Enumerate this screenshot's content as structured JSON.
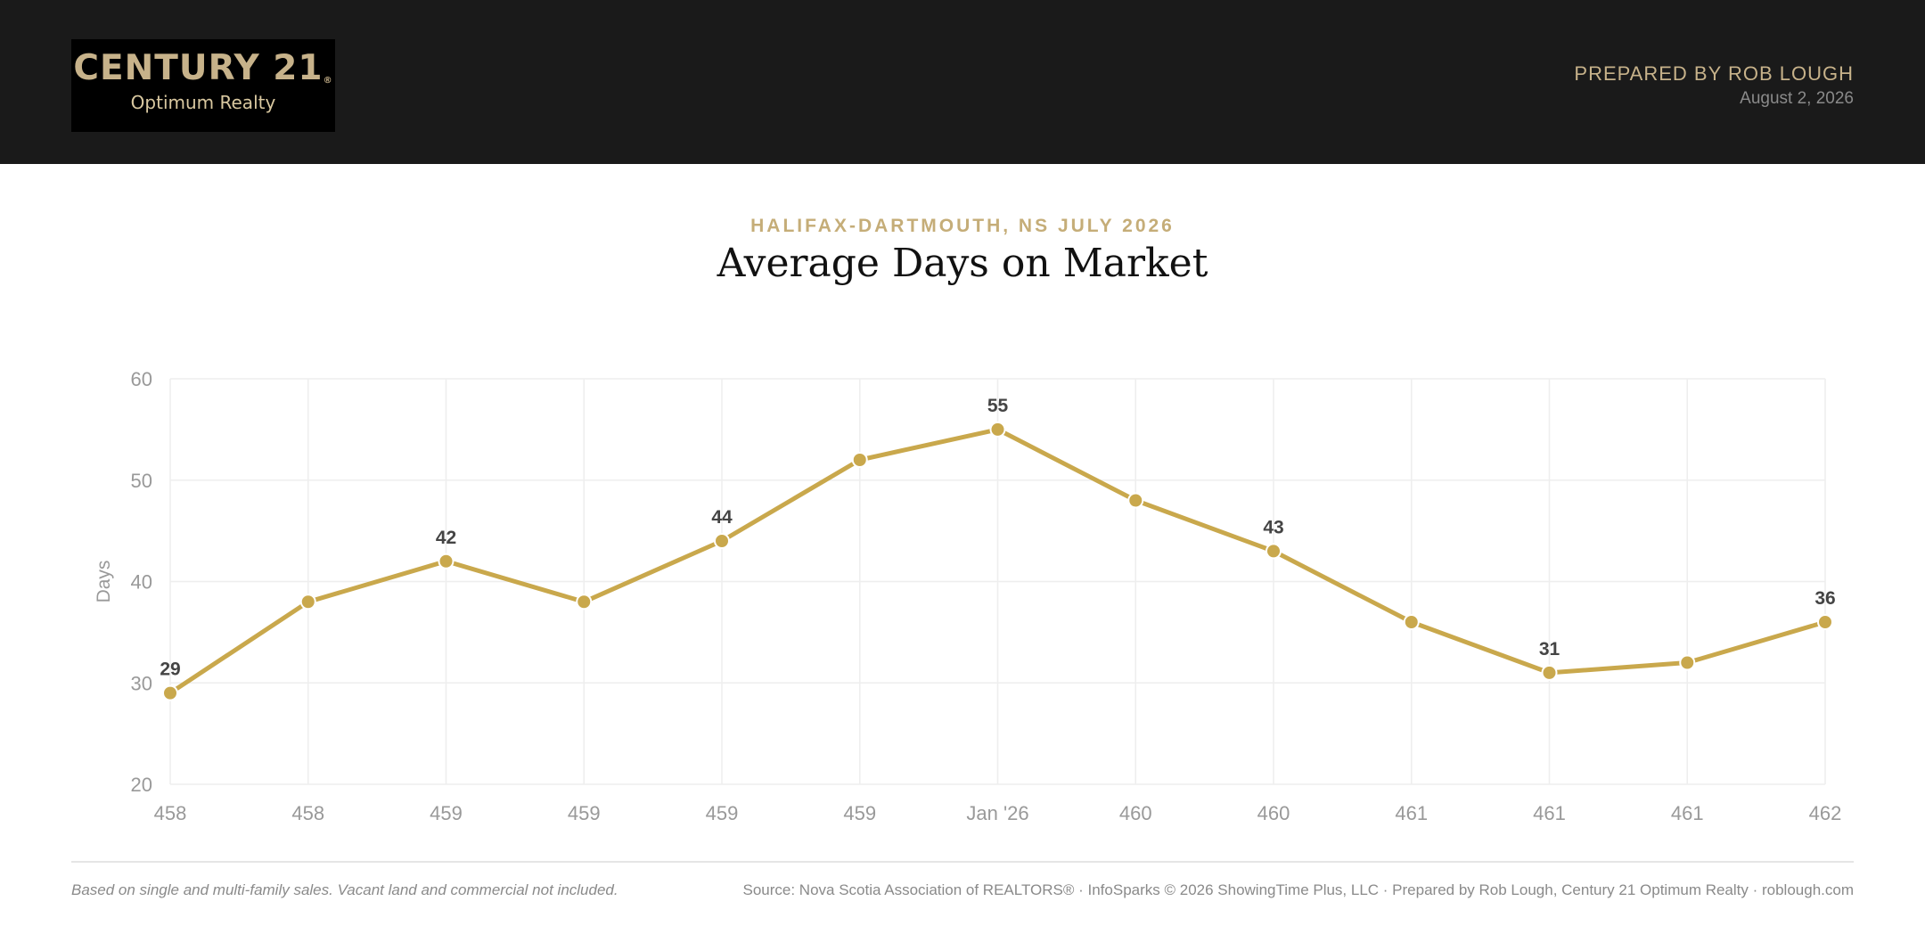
{
  "header": {
    "logo": {
      "brand": "CENTURY 21",
      "brand_mark": "®",
      "sub": "Optimum Realty"
    },
    "prepared_by": "PREPARED BY ROB LOUGH",
    "date": "August 2, 2026"
  },
  "report": {
    "subtitle": "HALIFAX-DARTMOUTH, NS JULY 2026",
    "title": "Average Days on Market"
  },
  "footer": {
    "note": "Based on single and multi-family sales. Vacant land and commercial not included.",
    "source": "Source: Nova Scotia Association of REALTORS® · InfoSparks © 2026 ShowingTime Plus, LLC · Prepared by Rob Lough, Century 21 Optimum Realty · roblough.com"
  },
  "chart_data": {
    "type": "line",
    "categories": [
      "458",
      "458",
      "459",
      "459",
      "459",
      "459",
      "Jan '26",
      "460",
      "460",
      "461",
      "461",
      "461",
      "462"
    ],
    "series": [
      {
        "values": [
          29,
          38,
          42,
          38,
          44,
          52,
          55,
          48,
          43,
          36,
          31,
          32,
          36
        ]
      }
    ],
    "labeled_points": [
      0,
      2,
      4,
      6,
      8,
      10,
      12
    ],
    "ylabel": "Days",
    "ylim": [
      20,
      60
    ],
    "yticks": [
      20,
      30,
      40,
      50,
      60
    ],
    "grid": true,
    "colors": {
      "line": "#c9a84c",
      "grid": "#eeeeee",
      "axis_text": "#999999",
      "label_text": "#444444"
    }
  }
}
